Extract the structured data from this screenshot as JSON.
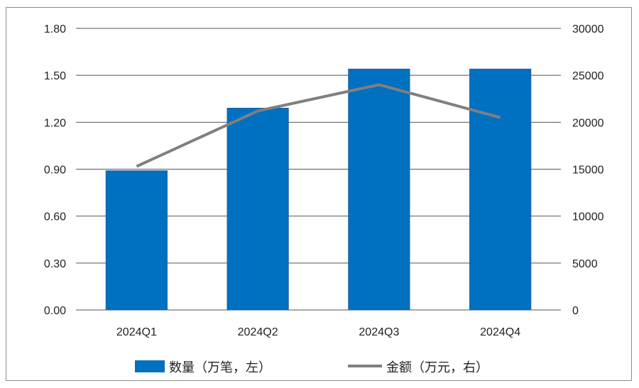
{
  "chart_data": {
    "type": "bar",
    "categories": [
      "2024Q1",
      "2024Q2",
      "2024Q3",
      "2024Q4"
    ],
    "series": [
      {
        "name": "数量（万笔，左）",
        "type": "bar",
        "axis": "left",
        "values": [
          0.89,
          1.29,
          1.54,
          1.54
        ]
      },
      {
        "name": "金额（万元，右）",
        "type": "line",
        "axis": "right",
        "values": [
          15300,
          21200,
          24000,
          20500
        ]
      }
    ],
    "left_axis": {
      "ylim": [
        0,
        1.8
      ],
      "ticks": [
        "0.00",
        "0.30",
        "0.60",
        "0.90",
        "1.20",
        "1.50",
        "1.80"
      ]
    },
    "right_axis": {
      "ylim": [
        0,
        30000
      ],
      "ticks": [
        "0",
        "5000",
        "10000",
        "15000",
        "20000",
        "25000",
        "30000"
      ]
    },
    "grid": true,
    "legend": "bottom",
    "colors": {
      "bar": "#0070C0",
      "line": "#7F7F7F",
      "grid": "#555555"
    }
  }
}
